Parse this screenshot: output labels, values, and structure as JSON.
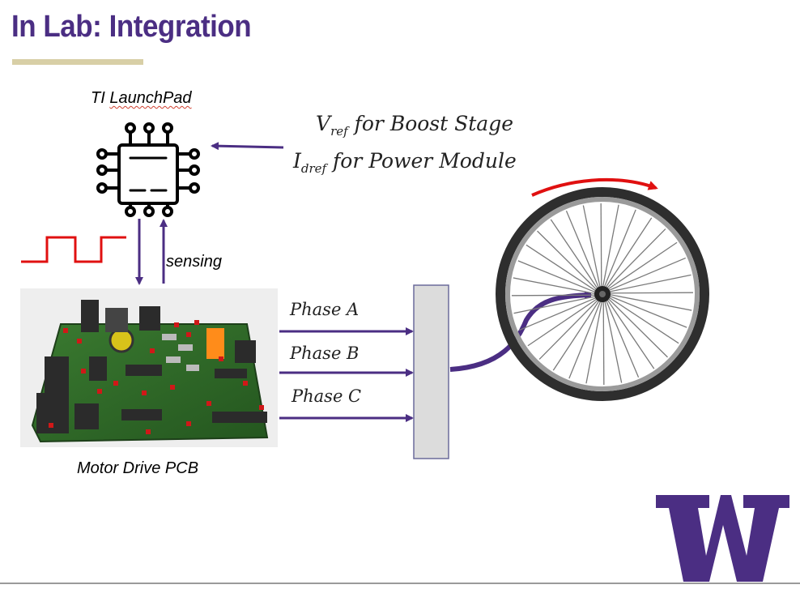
{
  "slide": {
    "title": "In Lab: Integration"
  },
  "launchpad": {
    "label_prefix": "TI ",
    "label_name": "LaunchPad",
    "icon": "microcontroller-chip-icon"
  },
  "references": {
    "vref_symbol": "V",
    "vref_sub": "ref",
    "vref_text": " for Boost Stage",
    "idref_symbol": "I",
    "idref_sub": "dref",
    "idref_text": " for Power Module"
  },
  "signals": {
    "sensing_label": "sensing",
    "pwm_icon": "square-wave-icon"
  },
  "pcb": {
    "label": "Motor Drive PCB",
    "image_icon": "circuit-board-image"
  },
  "phases": {
    "a": "Phase A",
    "b": "Phase B",
    "c": "Phase C"
  },
  "motor": {
    "icon": "bicycle-wheel-icon",
    "rotation_icon": "rotation-arrow-icon"
  },
  "logo": {
    "text": "W",
    "icon": "uw-logo-icon"
  },
  "colors": {
    "purple": "#4b2e83",
    "gold": "#d8cfa6",
    "red": "#e01010",
    "pcb_green": "#2f6b2a"
  }
}
